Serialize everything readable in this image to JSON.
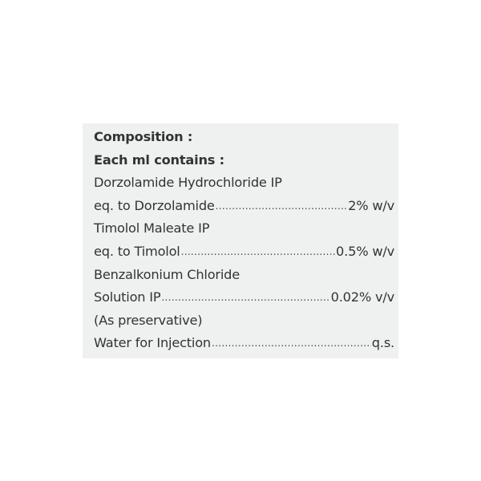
{
  "heading": "Composition :",
  "subheading": "Each ml contains :",
  "lines": [
    {
      "label": "Dorzolamide Hydrochloride IP"
    },
    {
      "label": "eq. to Dorzolamide",
      "value": "2% w/v"
    },
    {
      "label": "Timolol Maleate IP"
    },
    {
      "label": "eq. to Timolol",
      "value": "0.5% w/v"
    },
    {
      "label": "Benzalkonium Chloride"
    },
    {
      "label": "Solution IP",
      "value": "0.02% v/v"
    },
    {
      "label": "(As preservative)"
    },
    {
      "label": "Water for Injection",
      "value": "q.s."
    }
  ],
  "colors": {
    "panel": "#eff1f1",
    "text": "#333333"
  }
}
